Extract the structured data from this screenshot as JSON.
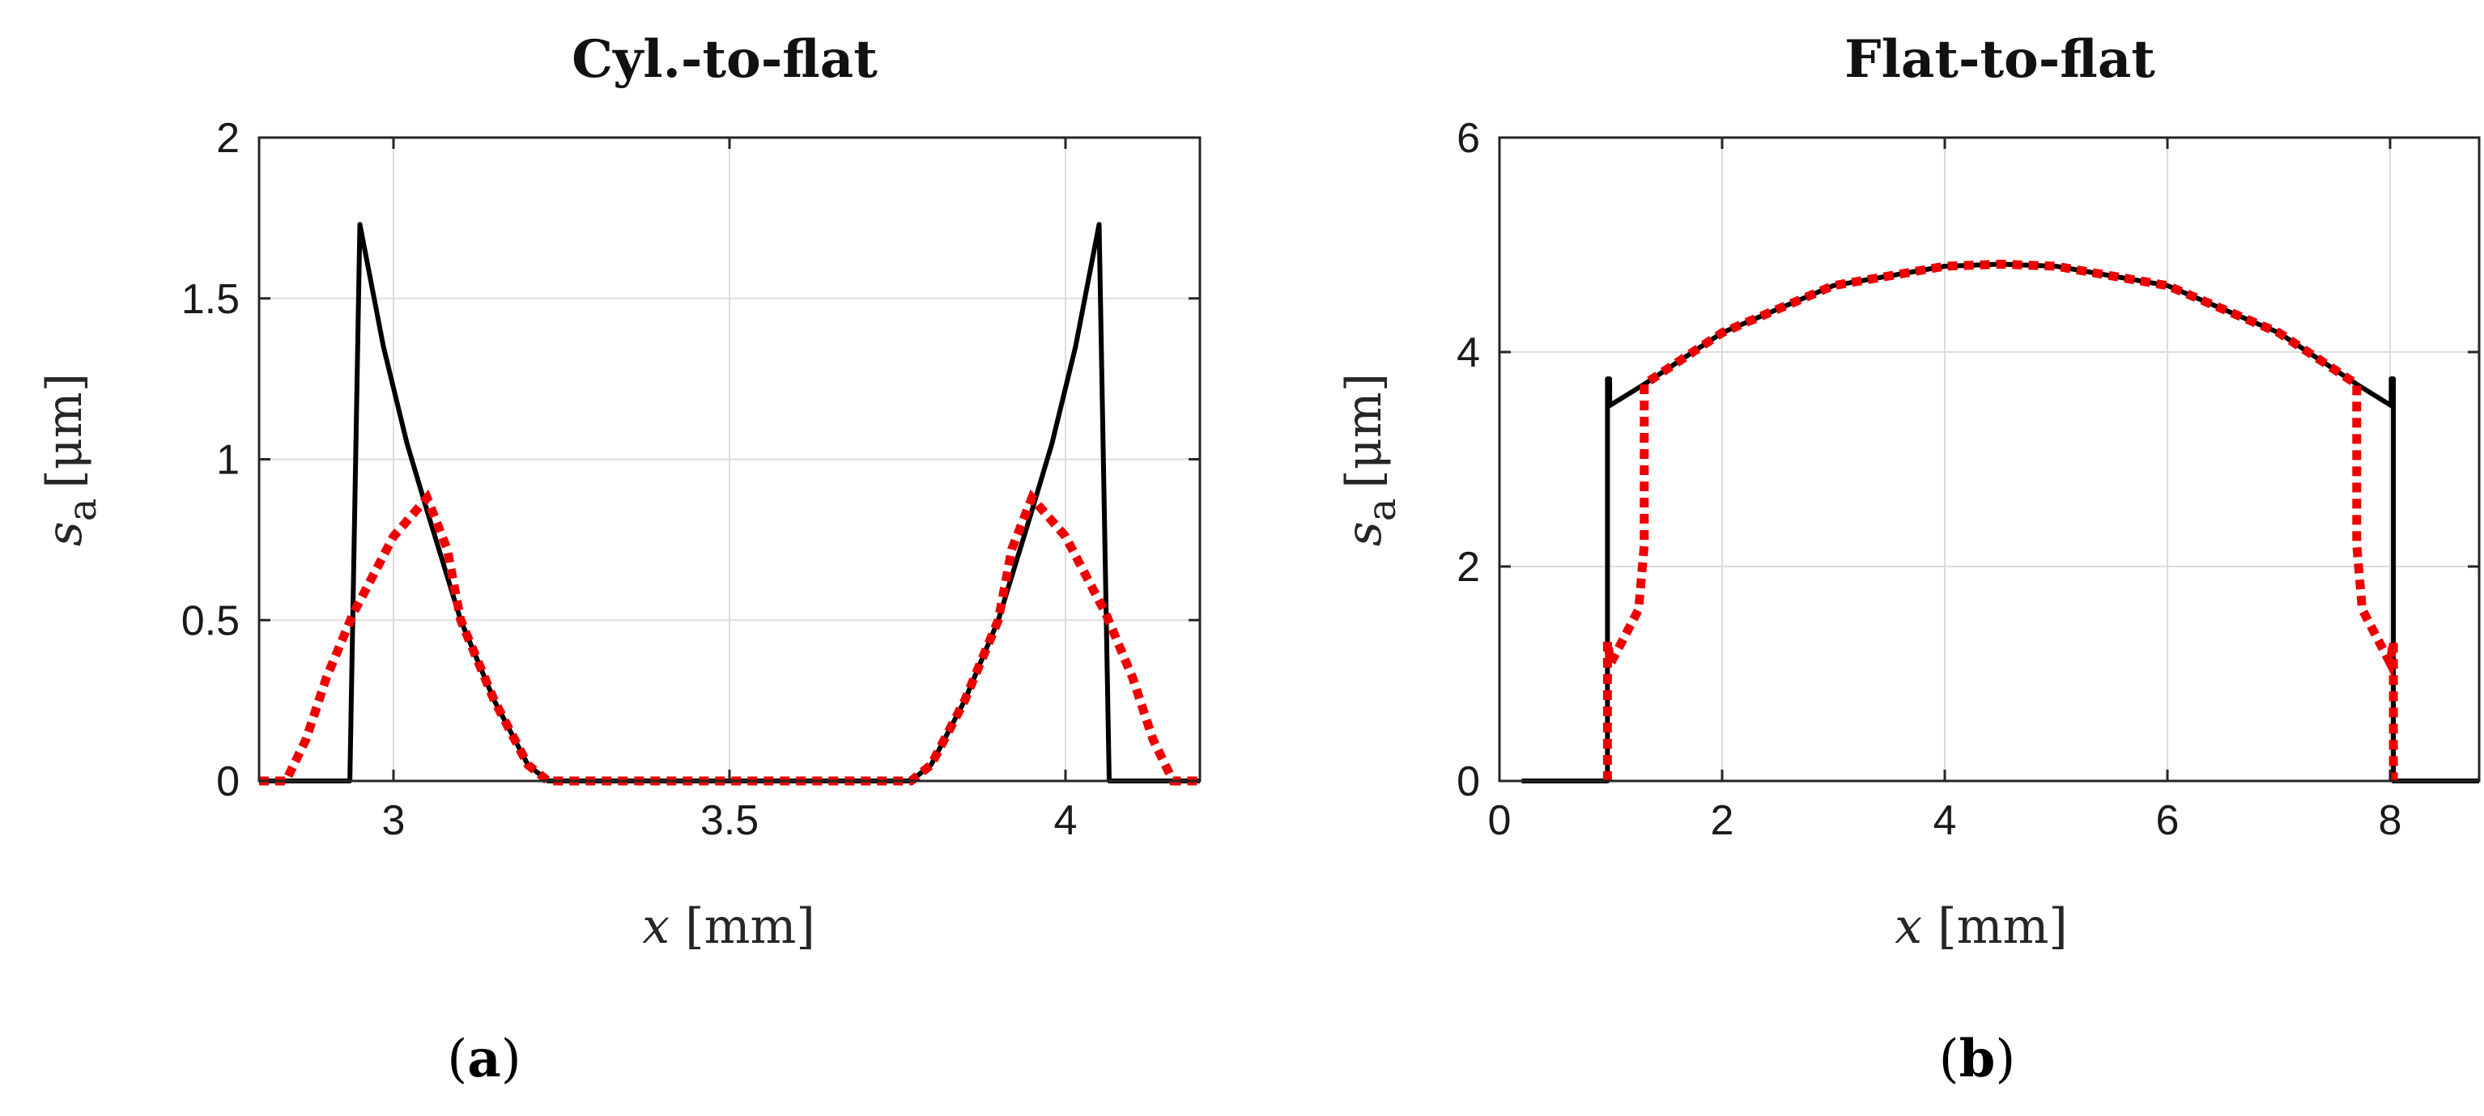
{
  "chart_data": [
    {
      "type": "line",
      "panel": "a",
      "title": "Cyl.-to-flat",
      "xlabel": "x [mm]",
      "ylabel": "s a [μm]",
      "xlim": [
        2.8,
        4.2
      ],
      "ylim": [
        0,
        2
      ],
      "xticks": [
        3,
        3.5,
        4
      ],
      "yticks": [
        0,
        0.5,
        1,
        1.5,
        2
      ],
      "xtick_labels": [
        "3",
        "3.5",
        "4"
      ],
      "ytick_labels": [
        "0",
        "0.5",
        "1",
        "1.5",
        "2"
      ],
      "grid": true,
      "series": [
        {
          "name": "solid (black)",
          "color": "#000000",
          "style": "solid",
          "x": [
            2.8,
            2.935,
            2.95,
            2.985,
            3.02,
            3.05,
            3.1,
            3.15,
            3.2,
            3.23,
            3.5,
            3.77,
            3.8,
            3.85,
            3.9,
            3.95,
            3.98,
            4.015,
            4.05,
            4.065,
            4.2
          ],
          "y": [
            0,
            0,
            1.73,
            1.35,
            1.05,
            0.84,
            0.5,
            0.25,
            0.05,
            0,
            0,
            0,
            0.05,
            0.25,
            0.5,
            0.84,
            1.05,
            1.35,
            1.73,
            0,
            0
          ]
        },
        {
          "name": "dotted (red)",
          "color": "#ee0000",
          "style": "dotted",
          "x": [
            2.8,
            2.84,
            2.87,
            2.9,
            2.94,
            2.97,
            3.0,
            3.05,
            3.08,
            3.1,
            3.15,
            3.2,
            3.23,
            3.5,
            3.77,
            3.8,
            3.85,
            3.9,
            3.92,
            3.95,
            4.0,
            4.03,
            4.06,
            4.1,
            4.13,
            4.16,
            4.2
          ],
          "y": [
            0,
            0,
            0.13,
            0.32,
            0.52,
            0.64,
            0.76,
            0.88,
            0.72,
            0.5,
            0.25,
            0.05,
            0,
            0,
            0,
            0.05,
            0.25,
            0.5,
            0.72,
            0.88,
            0.76,
            0.64,
            0.52,
            0.32,
            0.13,
            0,
            0
          ]
        }
      ]
    },
    {
      "type": "line",
      "panel": "b",
      "title": "Flat-to-flat",
      "xlabel": "x [mm]",
      "ylabel": "s a [μm]",
      "xlim": [
        0,
        8.8
      ],
      "ylim": [
        0,
        6
      ],
      "xticks": [
        0,
        2,
        4,
        6,
        8
      ],
      "yticks": [
        0,
        2,
        4,
        6
      ],
      "xtick_labels": [
        "0",
        "2",
        "4",
        "6",
        "8"
      ],
      "ytick_labels": [
        "0",
        "2",
        "4",
        "6"
      ],
      "grid": true,
      "series": [
        {
          "name": "solid (black)",
          "color": "#000000",
          "style": "solid",
          "x": [
            0.2,
            0.97,
            0.97,
            0.99,
            0.99,
            1.3,
            2,
            3,
            4,
            4.5,
            5,
            6,
            7,
            7.7,
            8.01,
            8.01,
            8.03,
            8.03,
            8.8
          ],
          "y": [
            0,
            0,
            3.75,
            3.75,
            3.5,
            3.7,
            4.18,
            4.62,
            4.8,
            4.82,
            4.8,
            4.62,
            4.18,
            3.7,
            3.5,
            3.75,
            3.75,
            0,
            0
          ],
          "note": "black line rises to ~3.75 at x≈0.97 and x≈8.03"
        },
        {
          "name": "dotted (red)",
          "color": "#ee0000",
          "style": "dotted",
          "x": [
            0.97,
            0.97,
            1.0,
            1.1,
            1.2,
            1.25,
            1.3,
            1.3,
            2,
            3,
            4,
            4.5,
            5,
            6,
            7,
            7.7,
            7.7,
            7.75,
            7.8,
            7.9,
            8.0,
            8.03,
            8.03
          ],
          "y": [
            0,
            1.3,
            1.1,
            1.3,
            1.5,
            1.6,
            2.2,
            3.7,
            4.18,
            4.62,
            4.8,
            4.82,
            4.8,
            4.62,
            4.18,
            3.7,
            2.2,
            1.6,
            1.5,
            1.3,
            1.1,
            1.3,
            0
          ]
        }
      ]
    }
  ],
  "panels": {
    "a": {
      "label_open": "(",
      "letter": "a",
      "label_close": ")"
    },
    "b": {
      "label_open": "(",
      "letter": "b",
      "label_close": ")"
    }
  },
  "axis_text": {
    "x_symbol": "x",
    "x_unit": "[mm]",
    "y_symbol": "s",
    "y_subscript": "a",
    "y_unit": "[μm]"
  }
}
